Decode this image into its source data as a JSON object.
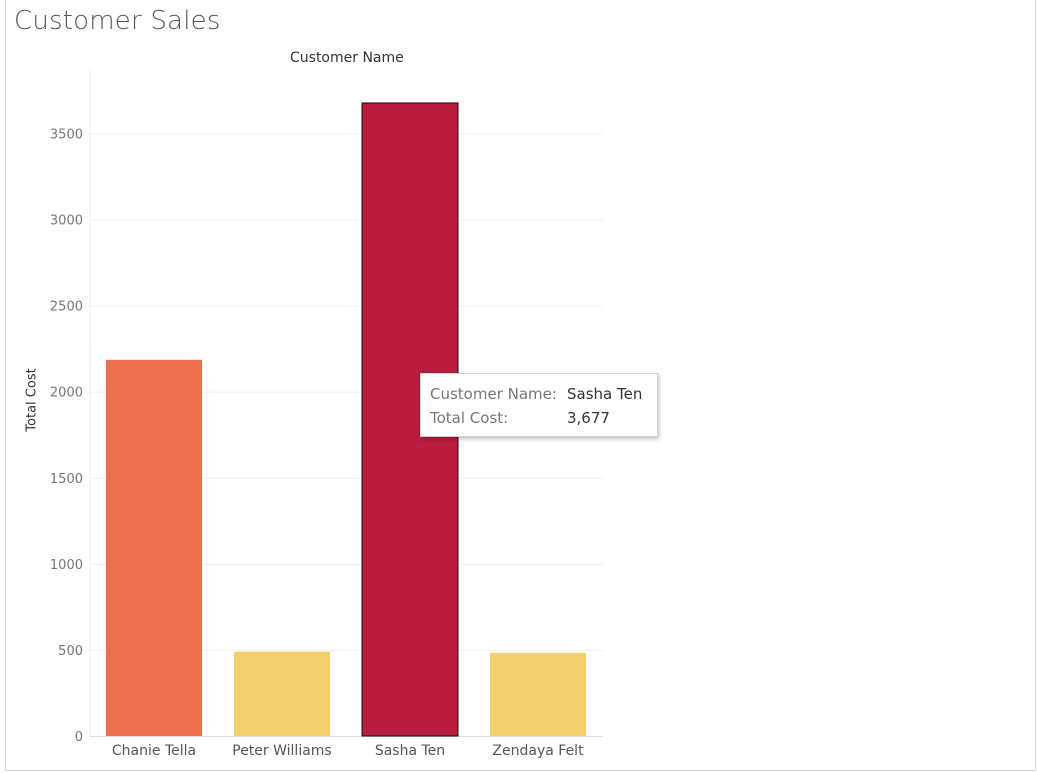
{
  "title": "Customer Sales",
  "column_header": "Customer Name",
  "chart_data": {
    "type": "bar",
    "categories": [
      "Chanie Tella",
      "Peter Williams",
      "Sasha Ten",
      "Zendaya Felt"
    ],
    "values": [
      2185,
      490,
      3677,
      483
    ],
    "ylabel": "Total Cost",
    "xlabel": "",
    "ylim": [
      0,
      3700
    ],
    "yticks": [
      0,
      500,
      1000,
      1500,
      2000,
      2500,
      3000,
      3500
    ],
    "grid": true,
    "colors": [
      "#ed6f4d",
      "#f2d06b",
      "#b81c3e",
      "#f2d06b"
    ],
    "highlighted_category": "Sasha Ten"
  },
  "tooltip": {
    "name_key": "Customer Name:",
    "name_value": "Sasha Ten",
    "cost_key": "Total Cost:",
    "cost_value": "3,677"
  }
}
